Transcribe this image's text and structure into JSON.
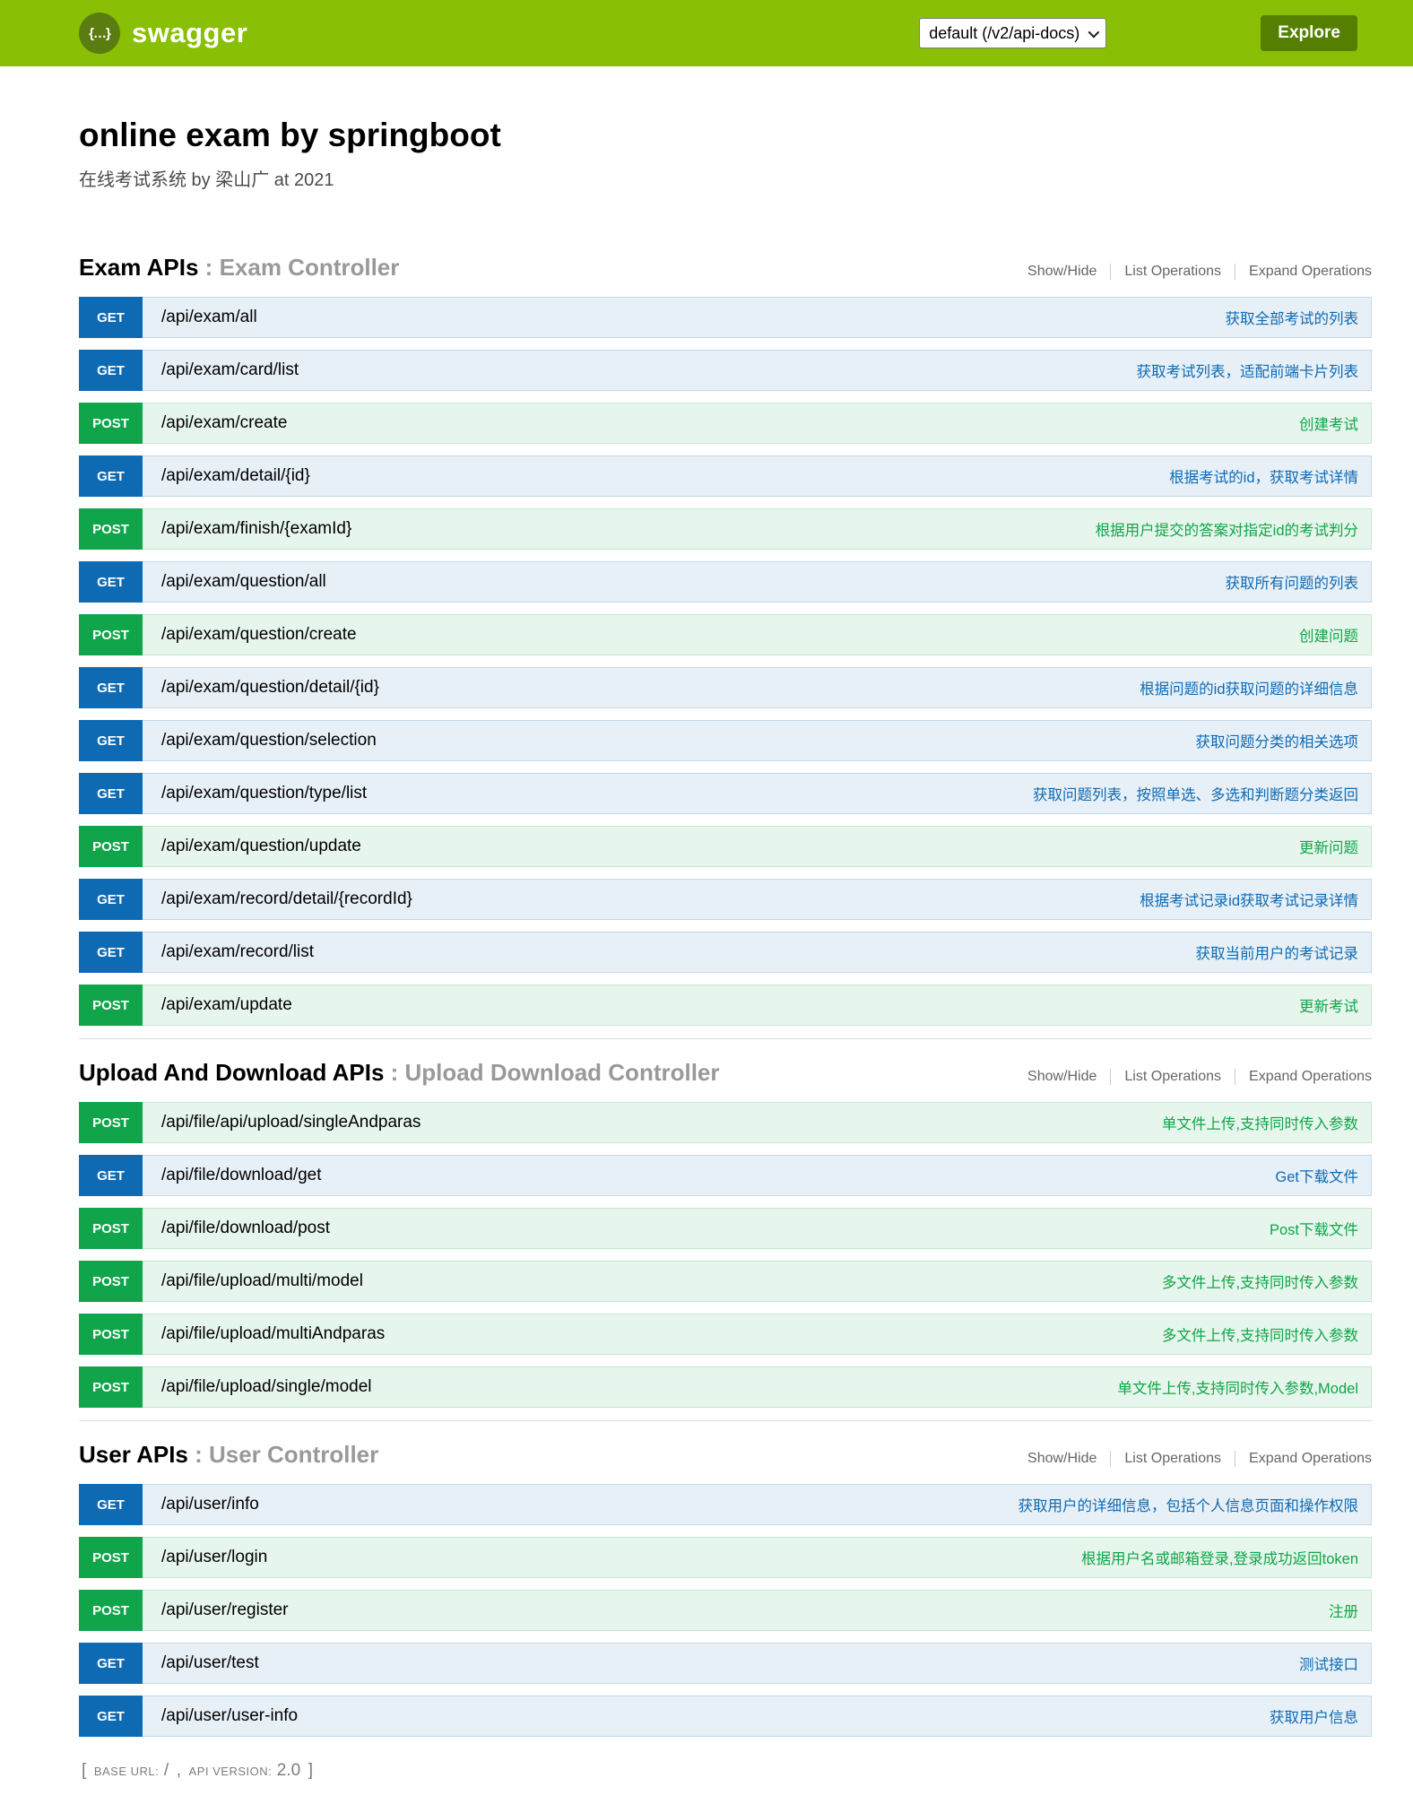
{
  "header": {
    "logo_glyph": "{…}",
    "logo_text": "swagger",
    "api_selector_value": "default (/v2/api-docs)",
    "explore_button": "Explore"
  },
  "info": {
    "title": "online exam by springboot",
    "description": "在线考试系统 by 梁山广 at 2021"
  },
  "section_separator": " : ",
  "section_controls": [
    "Show/Hide",
    "List Operations",
    "Expand Operations"
  ],
  "colors": {
    "header-bg": "#89bf04",
    "brand-dark": "#547f00",
    "get": "#0f6ab4",
    "get-bg": "#e7f0f7",
    "get-border": "#c3d9ec",
    "post": "#10a54a",
    "post-bg": "#e7f6ec",
    "post-border": "#c3e8d1"
  },
  "sections": [
    {
      "name": "Exam APIs",
      "controller": "Exam Controller",
      "endpoints": [
        {
          "method": "GET",
          "path": "/api/exam/all",
          "description": "获取全部考试的列表"
        },
        {
          "method": "GET",
          "path": "/api/exam/card/list",
          "description": "获取考试列表，适配前端卡片列表"
        },
        {
          "method": "POST",
          "path": "/api/exam/create",
          "description": "创建考试"
        },
        {
          "method": "GET",
          "path": "/api/exam/detail/{id}",
          "description": "根据考试的id，获取考试详情"
        },
        {
          "method": "POST",
          "path": "/api/exam/finish/{examId}",
          "description": "根据用户提交的答案对指定id的考试判分"
        },
        {
          "method": "GET",
          "path": "/api/exam/question/all",
          "description": "获取所有问题的列表"
        },
        {
          "method": "POST",
          "path": "/api/exam/question/create",
          "description": "创建问题"
        },
        {
          "method": "GET",
          "path": "/api/exam/question/detail/{id}",
          "description": "根据问题的id获取问题的详细信息"
        },
        {
          "method": "GET",
          "path": "/api/exam/question/selection",
          "description": "获取问题分类的相关选项"
        },
        {
          "method": "GET",
          "path": "/api/exam/question/type/list",
          "description": "获取问题列表，按照单选、多选和判断题分类返回"
        },
        {
          "method": "POST",
          "path": "/api/exam/question/update",
          "description": "更新问题"
        },
        {
          "method": "GET",
          "path": "/api/exam/record/detail/{recordId}",
          "description": "根据考试记录id获取考试记录详情"
        },
        {
          "method": "GET",
          "path": "/api/exam/record/list",
          "description": "获取当前用户的考试记录"
        },
        {
          "method": "POST",
          "path": "/api/exam/update",
          "description": "更新考试"
        }
      ]
    },
    {
      "name": "Upload And Download APIs",
      "controller": "Upload Download Controller",
      "endpoints": [
        {
          "method": "POST",
          "path": "/api/file/api/upload/singleAndparas",
          "description": "单文件上传,支持同时传入参数"
        },
        {
          "method": "GET",
          "path": "/api/file/download/get",
          "description": "Get下载文件"
        },
        {
          "method": "POST",
          "path": "/api/file/download/post",
          "description": "Post下载文件"
        },
        {
          "method": "POST",
          "path": "/api/file/upload/multi/model",
          "description": "多文件上传,支持同时传入参数"
        },
        {
          "method": "POST",
          "path": "/api/file/upload/multiAndparas",
          "description": "多文件上传,支持同时传入参数"
        },
        {
          "method": "POST",
          "path": "/api/file/upload/single/model",
          "description": "单文件上传,支持同时传入参数,Model"
        }
      ]
    },
    {
      "name": "User APIs",
      "controller": "User Controller",
      "endpoints": [
        {
          "method": "GET",
          "path": "/api/user/info",
          "description": "获取用户的详细信息，包括个人信息页面和操作权限"
        },
        {
          "method": "POST",
          "path": "/api/user/login",
          "description": "根据用户名或邮箱登录,登录成功返回token"
        },
        {
          "method": "POST",
          "path": "/api/user/register",
          "description": "注册"
        },
        {
          "method": "GET",
          "path": "/api/user/test",
          "description": "测试接口"
        },
        {
          "method": "GET",
          "path": "/api/user/user-info",
          "description": "获取用户信息"
        }
      ]
    }
  ],
  "footer": {
    "bracket_open": "[",
    "base_url_label": "base url",
    "colon": ":",
    "base_url_value": "/",
    "comma": ",",
    "api_version_label": "api version",
    "api_version_value": "2.0",
    "bracket_close": "]"
  }
}
